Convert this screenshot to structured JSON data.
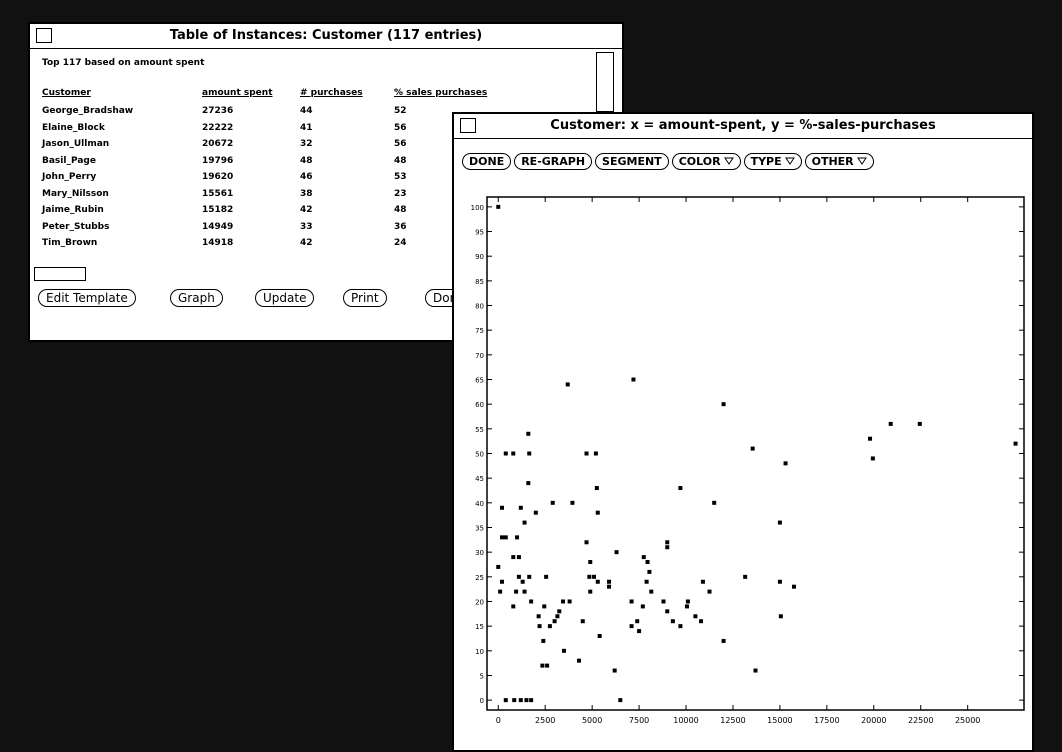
{
  "table_window": {
    "title": "Table of Instances: Customer (117 entries)",
    "subtitle": "Top 117 based on amount spent",
    "headers": [
      "Customer",
      "amount spent",
      "# purchases",
      "% sales purchases"
    ],
    "rows": [
      [
        "George_Bradshaw",
        "27236",
        "44",
        "52"
      ],
      [
        "Elaine_Block",
        "22222",
        "41",
        "56"
      ],
      [
        "Jason_Ullman",
        "20672",
        "32",
        "56"
      ],
      [
        "Basil_Page",
        "19796",
        "48",
        "48"
      ],
      [
        "John_Perry",
        "19620",
        "46",
        "53"
      ],
      [
        "Mary_Nilsson",
        "15561",
        "38",
        "23"
      ],
      [
        "Jaime_Rubin",
        "15182",
        "42",
        "48"
      ],
      [
        "Peter_Stubbs",
        "14949",
        "33",
        "36"
      ],
      [
        "Tim_Brown",
        "14918",
        "42",
        "24"
      ]
    ],
    "buttons": [
      "Edit Template",
      "Graph",
      "Update",
      "Print",
      "Done"
    ]
  },
  "chart_window": {
    "title": "Customer: x = amount-spent, y = %-sales-purchases",
    "buttons": [
      "DONE",
      "RE-GRAPH",
      "SEGMENT",
      "COLOR",
      "TYPE",
      "OTHER"
    ]
  },
  "chart_data": {
    "type": "scatter",
    "color": "#000000",
    "xlim": [
      -600,
      28000
    ],
    "ylim": [
      -2,
      102
    ],
    "xticks": [
      0,
      2500,
      5000,
      7500,
      10000,
      12500,
      15000,
      17500,
      20000,
      22500,
      25000
    ],
    "yticks": [
      0,
      5,
      10,
      15,
      20,
      25,
      30,
      35,
      40,
      45,
      50,
      55,
      60,
      65,
      70,
      75,
      80,
      85,
      90,
      95,
      100
    ],
    "x": [
      0,
      400,
      850,
      1200,
      1500,
      1750,
      0,
      200,
      100,
      200,
      400,
      200,
      400,
      800,
      1600,
      1650,
      1600,
      1200,
      1400,
      1000,
      800,
      1100,
      1300,
      1100,
      950,
      800,
      1400,
      1650,
      2000,
      1750,
      2150,
      2200,
      2400,
      2350,
      2600,
      2550,
      2450,
      2900,
      2750,
      3000,
      3250,
      3150,
      3450,
      3700,
      3500,
      3800,
      3950,
      4300,
      4500,
      4700,
      4700,
      4900,
      4850,
      4900,
      5100,
      5200,
      5250,
      5300,
      5300,
      5400,
      5900,
      5900,
      6200,
      6300,
      6500,
      7100,
      7200,
      7100,
      7400,
      7500,
      7700,
      7750,
      7900,
      7950,
      8050,
      8150,
      8800,
      9000,
      9000,
      9000,
      9300,
      9700,
      9700,
      10050,
      10100,
      10500,
      10800,
      10900,
      11250,
      11500,
      12000,
      12000,
      13150,
      13550,
      13700,
      15000,
      15000,
      15050,
      15300,
      15750,
      19800,
      19950,
      20900,
      22450,
      27550
    ],
    "y": [
      100,
      0,
      0,
      0,
      0,
      0,
      27,
      24,
      22,
      33,
      33,
      39,
      50,
      50,
      54,
      50,
      44,
      39,
      36,
      33,
      29,
      29,
      24,
      25,
      22,
      19,
      22,
      25,
      38,
      20,
      17,
      15,
      12,
      7,
      7,
      25,
      19,
      40,
      15,
      16,
      18,
      17,
      20,
      64,
      10,
      20,
      40,
      8,
      16,
      32,
      50,
      28,
      25,
      22,
      25,
      50,
      43,
      38,
      24,
      13,
      24,
      23,
      6,
      30,
      0,
      20,
      65,
      15,
      16,
      14,
      19,
      29,
      24,
      28,
      26,
      22,
      20,
      31,
      32,
      18,
      16,
      43,
      15,
      19,
      20,
      17,
      16,
      24,
      22,
      40,
      60,
      12,
      25,
      51,
      6,
      36,
      24,
      17,
      48,
      23,
      53,
      49,
      56,
      56,
      52
    ]
  }
}
